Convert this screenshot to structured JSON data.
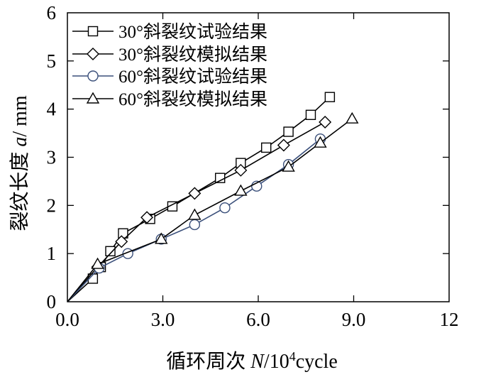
{
  "chart_data": {
    "type": "line",
    "xlabel_prefix": "循环周次 ",
    "xlabel_var": "N",
    "xlabel_mid": "/10",
    "xlabel_sup": "4",
    "xlabel_unit": "cycle",
    "ylabel_prefix": "裂纹长度 ",
    "ylabel_var": "a",
    "ylabel_unit": "/ mm",
    "xlim": [
      0,
      12
    ],
    "ylim": [
      0,
      6
    ],
    "x_ticks": [
      {
        "value": 0,
        "label": "0.0"
      },
      {
        "value": 3,
        "label": "3.0"
      },
      {
        "value": 6,
        "label": "6.0"
      },
      {
        "value": 9,
        "label": "9.0"
      },
      {
        "value": 12,
        "label": "12"
      }
    ],
    "y_ticks": [
      {
        "value": 0,
        "label": "0"
      },
      {
        "value": 1,
        "label": "1"
      },
      {
        "value": 2,
        "label": "2"
      },
      {
        "value": 3,
        "label": "3"
      },
      {
        "value": 4,
        "label": "4"
      },
      {
        "value": 5,
        "label": "5"
      },
      {
        "value": 6,
        "label": "6"
      }
    ],
    "grid": false,
    "legend_position": "top-left",
    "series": [
      {
        "name": "30°斜裂纹试验结果",
        "marker": "square",
        "color": "#000000",
        "x": [
          0,
          0.8,
          1.05,
          1.35,
          1.75,
          2.6,
          3.3,
          4.8,
          5.45,
          6.25,
          6.95,
          7.65,
          8.25
        ],
        "y": [
          0,
          0.48,
          0.72,
          1.05,
          1.42,
          1.72,
          1.98,
          2.57,
          2.88,
          3.2,
          3.53,
          3.88,
          4.25
        ]
      },
      {
        "name": "30°斜裂纹模拟结果",
        "marker": "diamond",
        "color": "#000000",
        "x": [
          0,
          0.95,
          1.7,
          2.5,
          4.0,
          5.45,
          6.8,
          8.1
        ],
        "y": [
          0,
          0.72,
          1.25,
          1.75,
          2.25,
          2.73,
          3.25,
          3.73
        ]
      },
      {
        "name": "60°斜裂纹试验结果",
        "marker": "circle",
        "color": "#3a4f7a",
        "x": [
          0,
          1.0,
          1.9,
          2.95,
          4.0,
          4.95,
          5.95,
          6.95,
          7.95
        ],
        "y": [
          0,
          0.7,
          1.0,
          1.3,
          1.6,
          1.95,
          2.4,
          2.85,
          3.38
        ]
      },
      {
        "name": "60°斜裂纹模拟结果",
        "marker": "triangle",
        "color": "#000000",
        "x": [
          0,
          0.95,
          2.95,
          4.0,
          5.45,
          6.95,
          7.95,
          8.95
        ],
        "y": [
          0,
          0.78,
          1.3,
          1.8,
          2.3,
          2.8,
          3.3,
          3.8
        ]
      }
    ]
  }
}
